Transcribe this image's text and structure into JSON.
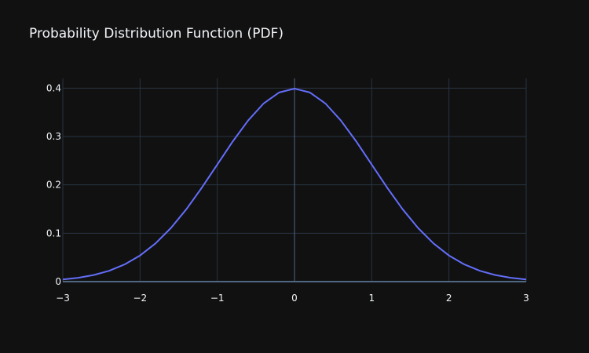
{
  "chart_data": {
    "type": "line",
    "title": "Probability Distribution Function (PDF)",
    "xlabel": "",
    "ylabel": "",
    "xlim": [
      -3,
      3
    ],
    "ylim": [
      0,
      0.42
    ],
    "x_ticks": [
      -3,
      -2,
      -1,
      0,
      1,
      2,
      3
    ],
    "x_tick_labels": [
      "−3",
      "−2",
      "−1",
      "0",
      "1",
      "2",
      "3"
    ],
    "y_ticks": [
      0,
      0.1,
      0.2,
      0.3,
      0.4
    ],
    "y_tick_labels": [
      "0",
      "0.1",
      "0.2",
      "0.3",
      "0.4"
    ],
    "grid": true,
    "legend": "none",
    "colors": {
      "background": "#111111",
      "grid": "#283442",
      "zeroline": "#506784",
      "line": "#636efa",
      "text": "#f2f5fa"
    },
    "series": [
      {
        "x": [
          -3.0,
          -2.8,
          -2.6,
          -2.4,
          -2.2,
          -2.0,
          -1.8,
          -1.6,
          -1.4,
          -1.2,
          -1.0,
          -0.8,
          -0.6,
          -0.4,
          -0.2,
          0.0,
          0.2,
          0.4,
          0.6,
          0.8,
          1.0,
          1.2,
          1.4,
          1.6,
          1.8,
          2.0,
          2.2,
          2.4,
          2.6,
          2.8,
          3.0
        ],
        "y": [
          0.0044,
          0.0079,
          0.0136,
          0.0224,
          0.0355,
          0.054,
          0.079,
          0.1109,
          0.1497,
          0.1942,
          0.242,
          0.2897,
          0.3332,
          0.3683,
          0.391,
          0.3989,
          0.391,
          0.3683,
          0.3332,
          0.2897,
          0.242,
          0.1942,
          0.1497,
          0.1109,
          0.079,
          0.054,
          0.0355,
          0.0224,
          0.0136,
          0.0079,
          0.0044
        ]
      }
    ]
  }
}
